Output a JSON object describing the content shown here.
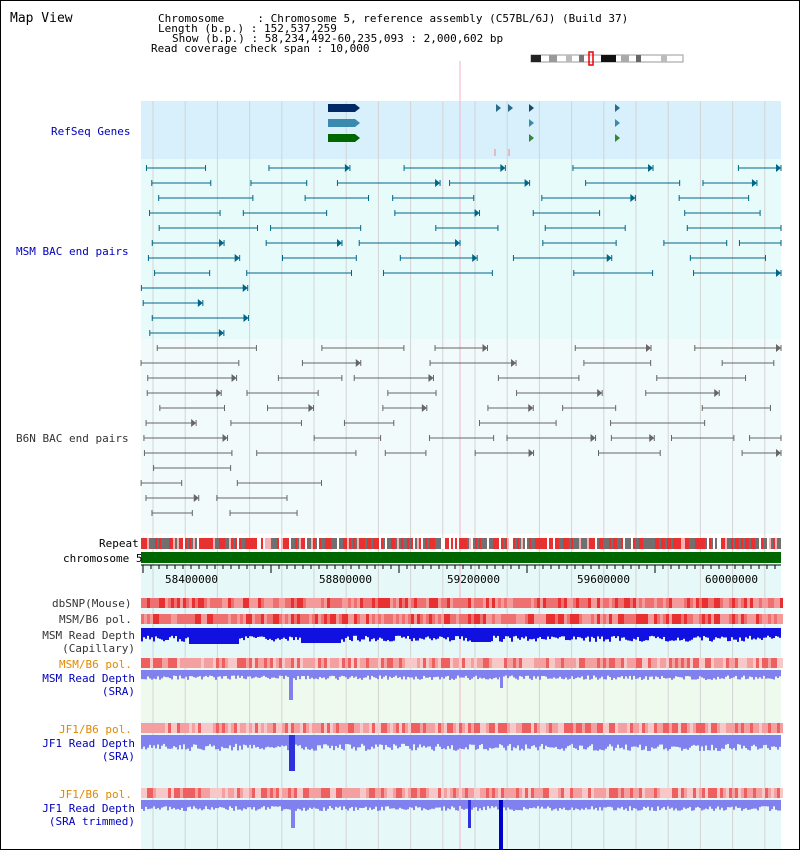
{
  "title": "Map View",
  "header": {
    "chromosome_label": "Chromosome     : ",
    "chromosome_value": "Chromosome 5, reference assembly (C57BL/6J) (Build 37)",
    "length_label": "Length (b.p.) : ",
    "length_value": "152,537,259",
    "show_label": "Show (b.p.) : ",
    "show_value": "58,234,492-60,235,093 : 2,000,602 bp",
    "coverage_label": "Read coverage check span : ",
    "coverage_value": "10,000"
  },
  "tracks": {
    "refseq": "RefSeq Genes",
    "msm_bac": "MSM BAC end pairs",
    "b6n_bac": "B6N BAC end pairs",
    "repeat": "Repeat",
    "chromosome": "chromosome 5",
    "dbsnp": "dbSNP(Mouse)",
    "msm_b6_pol_1": "MSM/B6 pol.",
    "msm_read_depth_cap_1": "MSM Read Depth",
    "msm_read_depth_cap_2": "(Capillary)",
    "msm_b6_pol_2": "MSM/B6 pol.",
    "msm_read_depth_sra_1": "MSM Read Depth",
    "msm_read_depth_sra_2": "(SRA)",
    "jf1_b6_pol_1": "JF1/B6 pol.",
    "jf1_read_depth_sra_1": "JF1 Read Depth",
    "jf1_read_depth_sra_2": "(SRA)",
    "jf1_b6_pol_2": "JF1/B6 pol.",
    "jf1_read_depth_trim_1": "JF1 Read Depth",
    "jf1_read_depth_trim_2": "(SRA trimmed)"
  },
  "axis": {
    "ticks": [
      "58400000",
      "58800000",
      "59200000",
      "59600000",
      "60000000"
    ]
  },
  "colors": {
    "refseq_bg": "#d8f0fb",
    "msm_bg": "#e8fbfb",
    "b6n_bg": "#f2fbfb",
    "msm_line": "#006688",
    "b6n_line": "#666666",
    "chromosome": "#006600",
    "depth_blue": "#1010e0",
    "depth_light": "#8080ee"
  }
}
